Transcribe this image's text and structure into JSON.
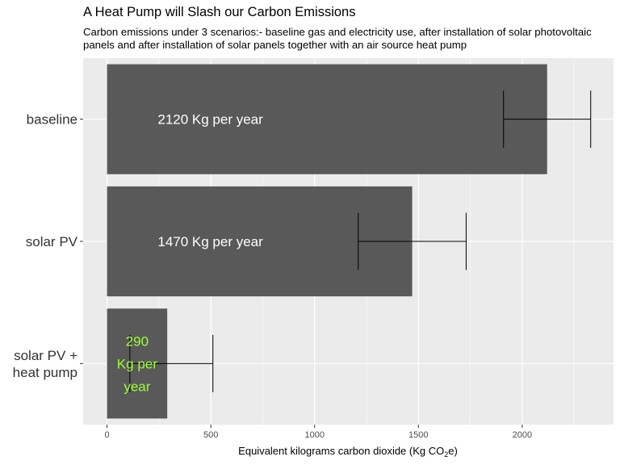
{
  "chart_data": {
    "type": "bar",
    "orientation": "horizontal",
    "title": "A Heat Pump will Slash our Carbon Emissions",
    "subtitle": "Carbon emissions under 3 scenarios:- baseline gas and electricity use, after installation of solar photovoltaic panels and after installation of solar panels together with an air source heat pump",
    "xlabel_main": "Equivalent kilograms carbon dioxide (Kg CO",
    "xlabel_sub": "2",
    "xlabel_end": "e)",
    "xlim": [
      -115,
      2440
    ],
    "x_ticks": [
      0,
      500,
      1000,
      1500,
      2000
    ],
    "categories": [
      "baseline",
      "solar PV",
      "solar PV + heat pump"
    ],
    "category_lines": [
      [
        "baseline"
      ],
      [
        "solar PV"
      ],
      [
        "solar PV +",
        "heat pump"
      ]
    ],
    "values": [
      2120,
      1470,
      290
    ],
    "error_low": [
      1910,
      1210,
      110
    ],
    "error_high": [
      2330,
      1730,
      510
    ],
    "bar_labels": [
      [
        "2120 Kg per year"
      ],
      [
        "1470 Kg per year"
      ],
      [
        "290",
        "Kg per",
        "year"
      ]
    ],
    "bar_label_colors": [
      "#ffffff",
      "#ffffff",
      "#99ff33"
    ],
    "bar_color": "#595959",
    "panel_color": "#ebebeb",
    "grid": true,
    "legend": "none"
  }
}
